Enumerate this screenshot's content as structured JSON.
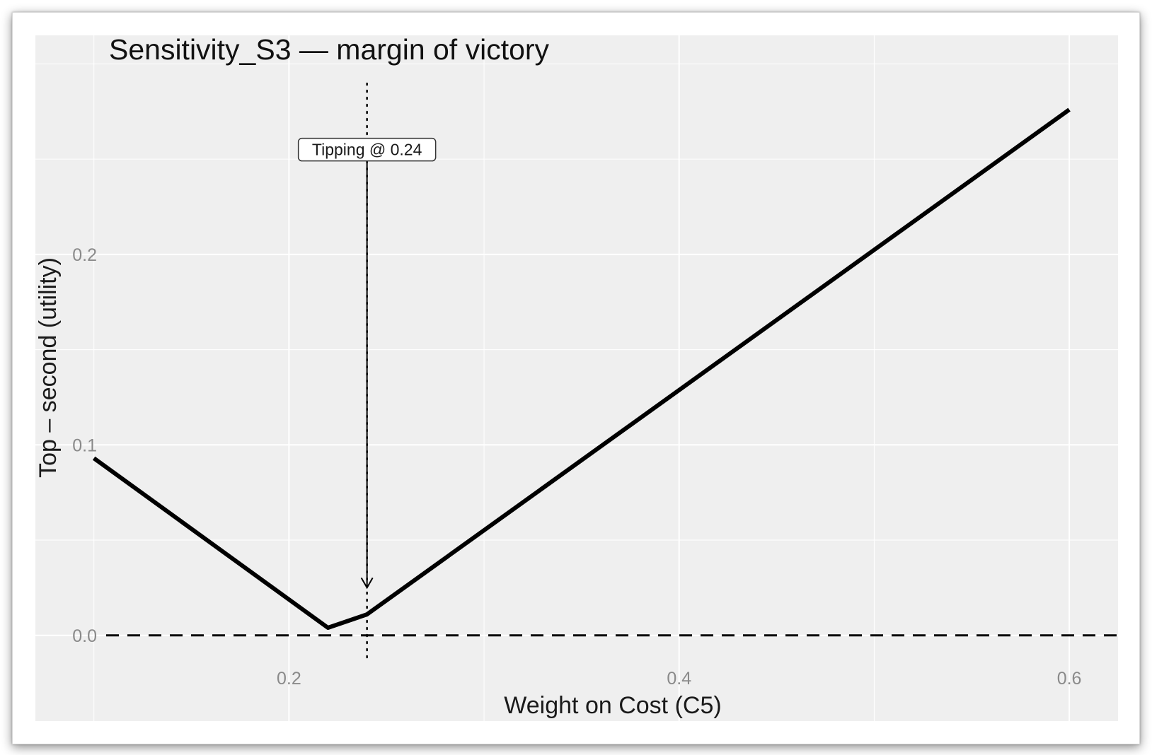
{
  "chart_data": {
    "type": "line",
    "title": "Sensitivity_S3 — margin of victory",
    "xlabel": "Weight on Cost (C5)",
    "ylabel": "Top – second (utility)",
    "xlim": [
      0.07,
      0.625
    ],
    "ylim": [
      -0.045,
      0.315
    ],
    "x_ticks": [
      0.2,
      0.4,
      0.6
    ],
    "y_ticks": [
      0.0,
      0.1,
      0.2
    ],
    "x_tick_labels": [
      "0.2",
      "0.4",
      "0.6"
    ],
    "y_tick_labels": [
      "0.0",
      "0.1",
      "0.2"
    ],
    "grid": true,
    "background_color": "#efefef",
    "grid_color": "#ffffff",
    "series": [
      {
        "color": "#000000",
        "x": [
          0.1,
          0.22,
          0.24,
          0.6
        ],
        "y": [
          0.093,
          0.004,
          0.011,
          0.276
        ]
      }
    ],
    "reference_lines": {
      "horizontal": {
        "y": 0.0,
        "style": "dashed"
      },
      "vertical": {
        "x": 0.24,
        "style": "dotted"
      }
    },
    "annotation": {
      "text": "Tipping @ 0.24",
      "x": 0.24,
      "y": 0.255,
      "arrow_to_y": 0.025
    }
  }
}
